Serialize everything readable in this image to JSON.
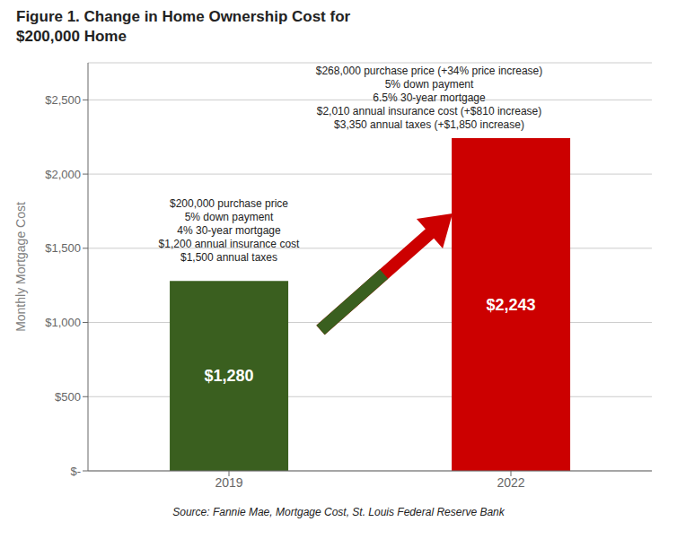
{
  "chart_data": {
    "type": "bar",
    "title": "Figure 1. Change in Home Ownership Cost for\n$200,000 Home",
    "categories": [
      "2019",
      "2022"
    ],
    "values": [
      1280,
      2243
    ],
    "colors": [
      "#3a5f1f",
      "#cc0000"
    ],
    "data_labels": true,
    "value_labels": [
      "$1,280",
      "$2,243"
    ],
    "ylabel": "Monthly Mortgage Cost",
    "ylim": [
      0,
      2750
    ],
    "yticks": [
      {
        "value": 0,
        "label": "$-"
      },
      {
        "value": 500,
        "label": "$500"
      },
      {
        "value": 1000,
        "label": "$1,000"
      },
      {
        "value": 1500,
        "label": "$1,500"
      },
      {
        "value": 2000,
        "label": "$2,000"
      },
      {
        "value": 2500,
        "label": "$2,500"
      }
    ],
    "grid": true,
    "annotations": [
      "$200,000 purchase price\n5% down payment\n4% 30-year mortgage\n$1,200 annual insurance cost\n$1,500 annual taxes",
      "$268,000 purchase price (+34% price increase)\n5% down payment\n6.5% 30-year mortgage\n$2,010 annual insurance cost (+$810 increase)\n$3,350 annual taxes (+$1,850 increase)"
    ],
    "source": "Source: Fannie Mae, Mortgage Cost, St. Louis Federal Reserve Bank"
  }
}
